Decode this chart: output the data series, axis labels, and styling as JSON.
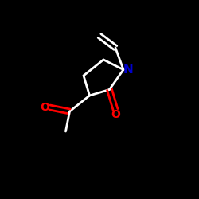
{
  "bg_color": "#000000",
  "bond_color": "#ffffff",
  "N_color": "#0000cc",
  "O_color": "#ff0000",
  "line_width": 2.0,
  "font_size": 10,
  "fig_width": 2.5,
  "fig_height": 2.5,
  "dpi": 100,
  "xlim": [
    0,
    10
  ],
  "ylim": [
    0,
    10
  ],
  "N": [
    6.2,
    6.5
  ],
  "C2": [
    5.5,
    5.5
  ],
  "C3": [
    4.5,
    5.2
  ],
  "C4": [
    4.2,
    6.2
  ],
  "C5": [
    5.2,
    7.0
  ],
  "O2": [
    5.8,
    4.5
  ],
  "Cacetyl": [
    3.5,
    4.4
  ],
  "O_acetyl": [
    2.5,
    4.6
  ],
  "CH3": [
    3.3,
    3.4
  ],
  "Cv1": [
    5.8,
    7.6
  ],
  "Cv2": [
    5.0,
    8.2
  ]
}
